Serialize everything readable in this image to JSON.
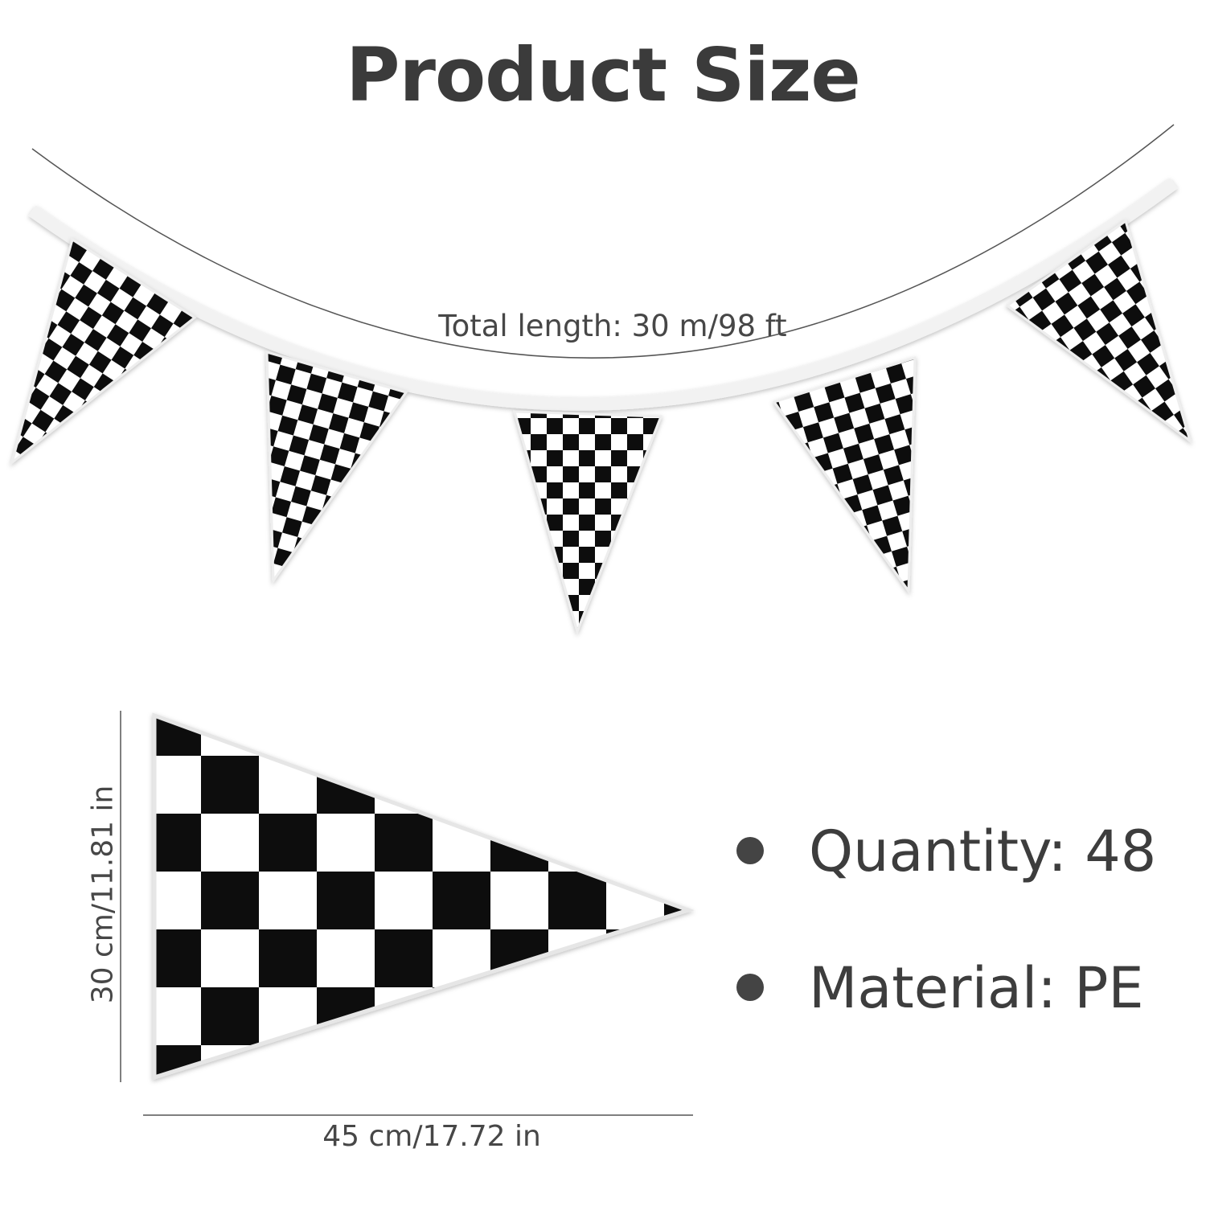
{
  "title": "Product Size",
  "bunting": {
    "total_length": "Total length: 30 m/98 ft",
    "pennant_count_shown": 5
  },
  "pennant_detail": {
    "height": "30 cm/11.81 in",
    "width": "45 cm/17.72 in"
  },
  "specs": [
    {
      "text": "Quantity: 48",
      "bullet": "bullet-dot-icon"
    },
    {
      "text": "Material: PE",
      "bullet": "bullet-dot-icon"
    }
  ],
  "colors": {
    "text": "#3d3d3d",
    "check_dark": "#111111",
    "check_light": "#ffffff"
  }
}
